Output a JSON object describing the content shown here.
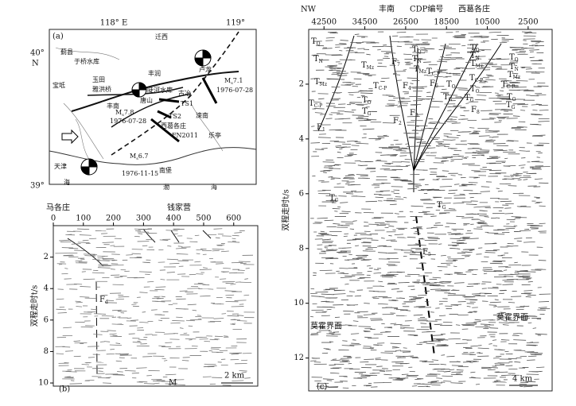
{
  "panel_a": {
    "label": "(a)",
    "lon_ticks": [
      {
        "value": 118,
        "label": "118° E"
      },
      {
        "value": 119,
        "label": "119°"
      }
    ],
    "lat_ticks": [
      {
        "value": 40,
        "label": "40°"
      },
      {
        "value": 39,
        "label": "39°"
      }
    ],
    "lat_unit": "N",
    "places": [
      "迁西",
      "蓟县",
      "于桥水库",
      "玉田",
      "宝坻",
      "雅洪桥",
      "丰润",
      "陡河水库",
      "古冶",
      "唐山",
      "TS1",
      "丰南",
      "TS2",
      "西葛各庄",
      "滦南",
      "FN2011",
      "乐亭",
      "天津",
      "南堡",
      "渤",
      "海",
      "海",
      "卢龙"
    ],
    "quakes": [
      {
        "m": "M",
        "s": "s",
        "v": "7.1",
        "date": "1976-07-28"
      },
      {
        "m": "M",
        "s": "s",
        "v": "7.8",
        "date": "1976-07-28"
      },
      {
        "m": "M",
        "s": "s",
        "v": "6.7",
        "date": "1976-11-15"
      }
    ]
  },
  "panel_b": {
    "label": "(b)",
    "top_labels": [
      "马各庄",
      "钱家营"
    ],
    "xlim": [
      0,
      680
    ],
    "xticks": [
      0,
      100,
      200,
      300,
      400,
      500,
      600
    ],
    "ylim": [
      0,
      10.2
    ],
    "yticks": [
      2,
      4,
      6,
      8,
      10
    ],
    "ylabel": "双程走时t/s",
    "fault": {
      "t": "F",
      "s": "d"
    },
    "moho": "M",
    "scale": "2 km"
  },
  "panel_c": {
    "label": "(c)",
    "top_labels": [
      "NW",
      "丰南",
      "CDP编号",
      "西葛各庄"
    ],
    "xlim": [
      45500,
      -2200
    ],
    "xticks": [
      42500,
      34500,
      26500,
      18500,
      10500,
      2500
    ],
    "ylim": [
      0,
      13.2
    ],
    "yticks": [
      2,
      4,
      6,
      8,
      10,
      12
    ],
    "ylabel": "双程走时t/s",
    "labels": [
      {
        "t": "T",
        "s": "Q"
      },
      {
        "t": "T",
        "s": "N"
      },
      {
        "t": "T",
        "s": "Mz"
      },
      {
        "t": "T",
        "s": "C-P"
      },
      {
        "t": "F",
        "s": "1"
      },
      {
        "t": "T",
        "s": "Mz"
      },
      {
        "t": "T",
        "s": "C-P"
      },
      {
        "t": "T",
        "s": "O"
      },
      {
        "t": "T",
        "s": "G"
      },
      {
        "t": "F",
        "s": "7"
      },
      {
        "t": "F",
        "s": "4"
      },
      {
        "t": "F",
        "s": "2"
      },
      {
        "t": "F",
        "s": "3"
      },
      {
        "t": "T",
        "s": "Q"
      },
      {
        "t": "T",
        "s": "N"
      },
      {
        "t": "T",
        "s": "Mz"
      },
      {
        "t": "F",
        "s": "6"
      },
      {
        "t": "T",
        "s": "C-P"
      },
      {
        "t": "T",
        "s": "O"
      },
      {
        "t": "T",
        "s": "G"
      },
      {
        "t": "F",
        "s": "8"
      },
      {
        "t": "T",
        "s": "Q"
      },
      {
        "t": "T",
        "s": "N"
      },
      {
        "t": "T",
        "s": "Mz"
      },
      {
        "t": "T",
        "s": "C-P"
      },
      {
        "t": "T",
        "s": "O"
      },
      {
        "t": "T",
        "s": "G"
      },
      {
        "t": "T",
        "s": "Q"
      },
      {
        "t": "T",
        "s": "N"
      },
      {
        "t": "T",
        "s": "Mz"
      },
      {
        "t": "T",
        "s": "C-P"
      },
      {
        "t": "T",
        "s": "O"
      },
      {
        "t": "T",
        "s": "G"
      },
      {
        "t": "T",
        "s": "C"
      },
      {
        "t": "T",
        "s": "G"
      },
      {
        "t": "F",
        "s": "5"
      }
    ],
    "moho": [
      "莫霍界面",
      "莫霍界面"
    ],
    "scale": "4 km"
  }
}
